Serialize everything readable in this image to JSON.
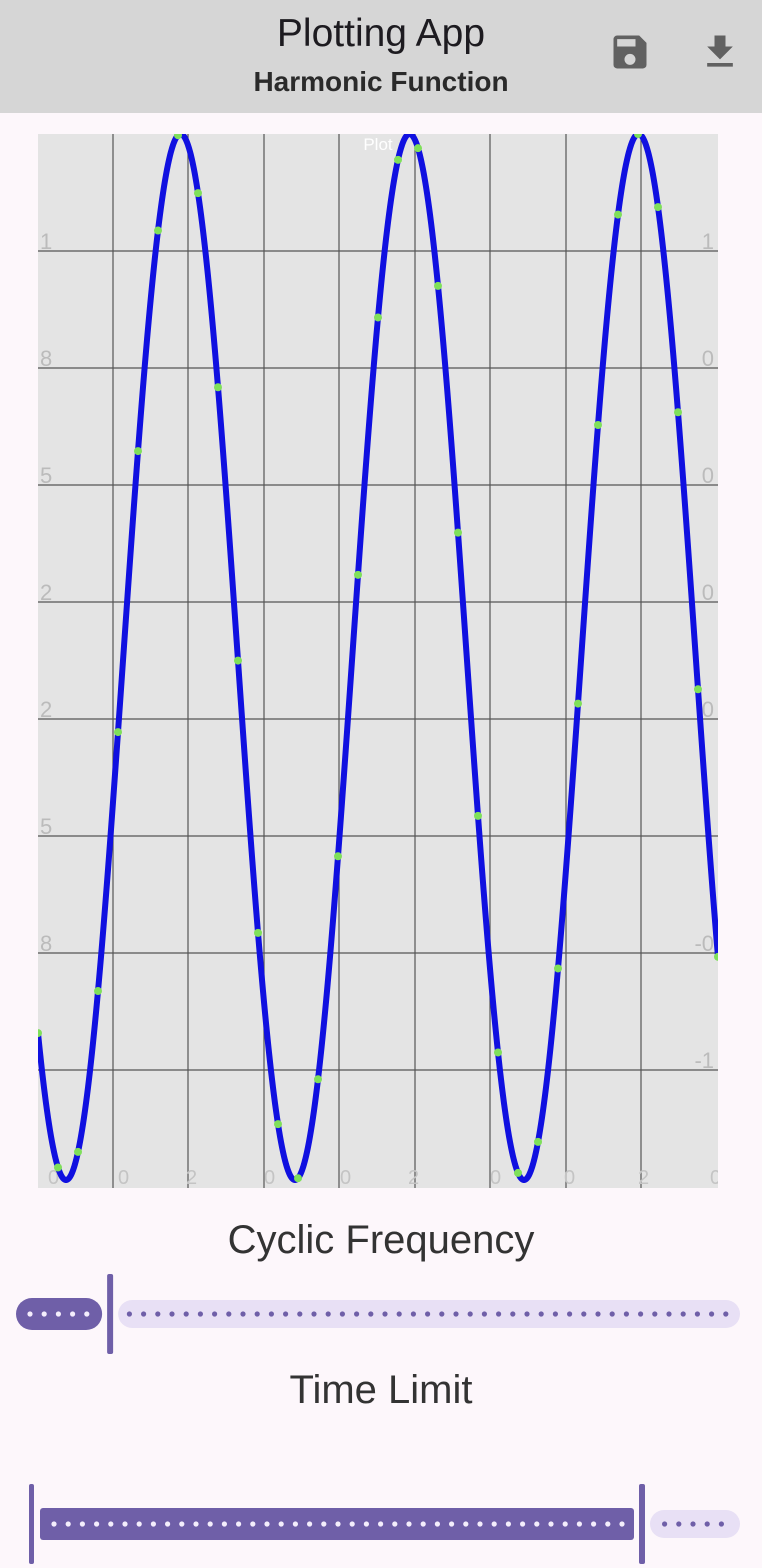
{
  "header": {
    "title": "Plotting App",
    "subtitle": "Harmonic Function",
    "actions": [
      {
        "name": "save-icon"
      },
      {
        "name": "download-icon"
      }
    ]
  },
  "plot": {
    "title_label": "Plot",
    "left_tick_labels": [
      "1",
      "8",
      "5",
      "2",
      "2",
      "5",
      "8",
      ""
    ],
    "right_tick_labels": [
      "1",
      "0",
      "0",
      "0",
      "0",
      "",
      "-0",
      "-1"
    ],
    "bottom_tick_labels": [
      "0",
      "0",
      "2",
      "0",
      "0",
      "2",
      "0",
      "0",
      "2",
      "0"
    ],
    "background": "#e4e4e4",
    "grid_color": "#555555",
    "line_color": "#1010e0",
    "point_color": "#7fe05a"
  },
  "chart_data": {
    "type": "line",
    "title": "Plot",
    "xlabel": "",
    "ylabel": "",
    "series": [
      {
        "function": "cosine",
        "periods_shown": 3.0,
        "phase_start": "near minimum",
        "values_normalized_min": -1,
        "values_normalized_max": 1
      }
    ],
    "grid": true
  },
  "controls": {
    "frequency": {
      "label": "Cyclic Frequency",
      "value_fraction": 0.13,
      "active_color": "#6f5fa8",
      "inactive_color": "#e8e0f5"
    },
    "time_limit": {
      "label": "Time Limit",
      "value_fraction": 0.86,
      "active_color": "#6f5fa8",
      "inactive_color": "#e8e0f5"
    }
  }
}
